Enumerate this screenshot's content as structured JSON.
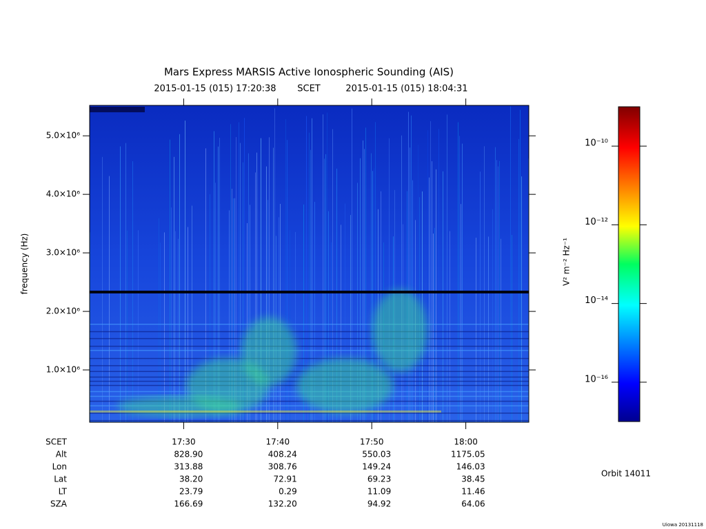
{
  "chart_data": {
    "type": "spectrogram",
    "title": "Mars Express MARSIS Active Ionospheric Sounding (AIS)",
    "subtitle_start": "2015-01-15 (015) 17:20:38",
    "subtitle_mid": "SCET",
    "subtitle_end": "2015-01-15 (015) 18:04:31",
    "y_label": "frequency (Hz)",
    "ylim": [
      106000,
      5520000
    ],
    "yticks": [
      {
        "value": 1000000,
        "label": "1.0×10⁶"
      },
      {
        "value": 2000000,
        "label": "2.0×10⁶"
      },
      {
        "value": 3000000,
        "label": "3.0×10⁶"
      },
      {
        "value": 4000000,
        "label": "4.0×10⁶"
      },
      {
        "value": 5000000,
        "label": "5.0×10⁶"
      }
    ],
    "xlim": [
      1040,
      1086.7
    ],
    "xticks": [
      {
        "value": 1050,
        "label": "17:30"
      },
      {
        "value": 1060,
        "label": "17:40"
      },
      {
        "value": 1070,
        "label": "17:50"
      },
      {
        "value": 1080,
        "label": "18:00"
      }
    ],
    "ephemeris": {
      "labels": [
        "SCET",
        "Alt",
        "Lon",
        "Lat",
        "LT",
        "SZA"
      ],
      "rows": [
        [
          "828.90",
          "408.24",
          "550.03",
          "1175.05"
        ],
        [
          "313.88",
          "308.76",
          "149.24",
          "146.03"
        ],
        [
          "38.20",
          "72.91",
          "69.23",
          "38.45"
        ],
        [
          "23.79",
          "0.29",
          "11.09",
          "11.46"
        ],
        [
          "166.69",
          "132.20",
          "94.92",
          "64.06"
        ]
      ]
    },
    "colorbar": {
      "label": "V² m⁻² Hz⁻¹",
      "log": true,
      "lim": [
        1e-17,
        1e-09
      ],
      "ticks": [
        {
          "value": 1e-16,
          "label": "10⁻¹⁶"
        },
        {
          "value": 1e-14,
          "label": "10⁻¹⁴"
        },
        {
          "value": 1e-12,
          "label": "10⁻¹²"
        },
        {
          "value": 1e-10,
          "label": "10⁻¹⁰"
        }
      ]
    },
    "orbit": "Orbit 14011",
    "footer": "Uiowa 20131118"
  }
}
